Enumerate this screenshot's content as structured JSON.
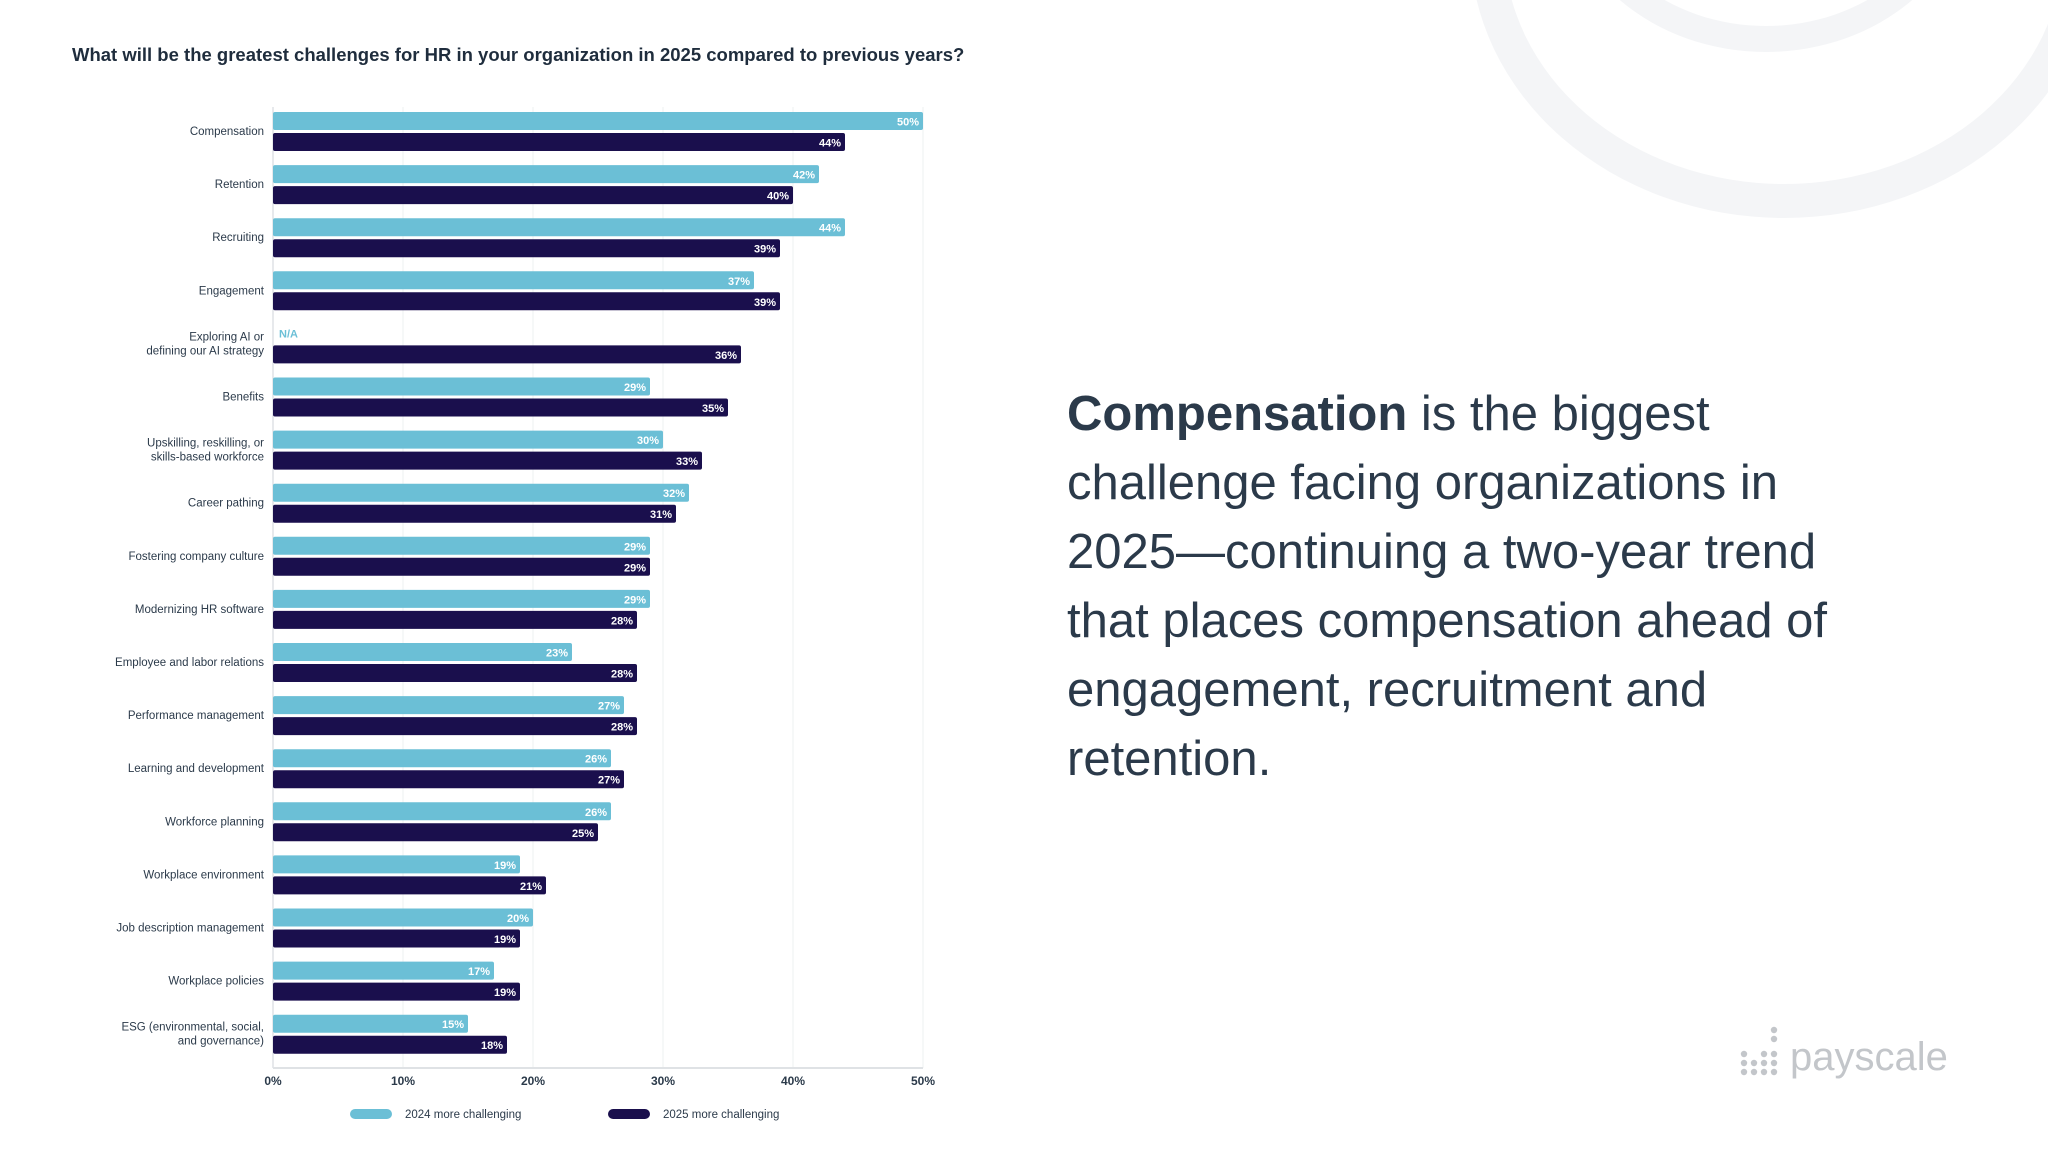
{
  "chart_data": {
    "type": "bar",
    "orientation": "horizontal",
    "title": "What will be the greatest challenges for HR in your organization in 2025 compared to previous years?",
    "categories": [
      "Compensation",
      "Retention",
      "Recruiting",
      "Engagement",
      "Exploring AI or defining our AI strategy",
      "Benefits",
      "Upskilling, reskilling, or skills-based workforce",
      "Career pathing",
      "Fostering company culture",
      "Modernizing HR software",
      "Employee and labor relations",
      "Performance management",
      "Learning and development",
      "Workforce planning",
      "Workplace environment",
      "Job description management",
      "Workplace policies",
      "ESG (environmental, social, and governance)"
    ],
    "category_lines": [
      [
        "Compensation"
      ],
      [
        "Retention"
      ],
      [
        "Recruiting"
      ],
      [
        "Engagement"
      ],
      [
        "Exploring AI or",
        "defining our AI strategy"
      ],
      [
        "Benefits"
      ],
      [
        "Upskilling, reskilling, or",
        "skills-based workforce"
      ],
      [
        "Career pathing"
      ],
      [
        "Fostering company culture"
      ],
      [
        "Modernizing HR software"
      ],
      [
        "Employee and labor relations"
      ],
      [
        "Performance management"
      ],
      [
        "Learning and development"
      ],
      [
        "Workforce planning"
      ],
      [
        "Workplace environment"
      ],
      [
        "Job description management"
      ],
      [
        "Workplace policies"
      ],
      [
        "ESG (environmental, social,",
        "and governance)"
      ]
    ],
    "series": [
      {
        "name": "2024 more challenging",
        "color": "#6bbfd6",
        "values": [
          50,
          42,
          44,
          37,
          null,
          29,
          30,
          32,
          29,
          29,
          23,
          27,
          26,
          26,
          19,
          20,
          17,
          15
        ]
      },
      {
        "name": "2025 more challenging",
        "color": "#1a0f4d",
        "values": [
          44,
          40,
          39,
          39,
          36,
          35,
          33,
          31,
          29,
          28,
          28,
          28,
          27,
          25,
          21,
          19,
          19,
          18
        ]
      }
    ],
    "missing_label": "N/A",
    "xlim": [
      0,
      50
    ],
    "xticks": [
      "0%",
      "10%",
      "20%",
      "30%",
      "40%",
      "50%"
    ],
    "value_suffix": "%",
    "grid": true,
    "legend": "bottom"
  },
  "headline": {
    "bold": "Compensation",
    "rest": " is the biggest challenge facing organizations in 2025—continuing a two-year trend that places compensation ahead of engagement, recruitment and retention."
  },
  "logo": {
    "text": "payscale"
  }
}
